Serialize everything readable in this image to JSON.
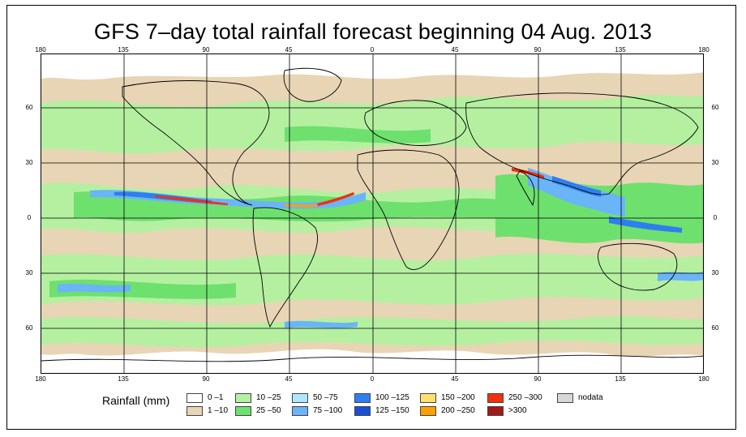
{
  "title": "GFS 7–day total rainfall forecast beginning 04 Aug. 2013",
  "lon_labels": [
    "180",
    "135",
    "90",
    "45",
    "0",
    "45",
    "90",
    "135",
    "180"
  ],
  "lat_labels": [
    "60",
    "30",
    "0",
    "30",
    "60"
  ],
  "legend": {
    "title": "Rainfall (mm)",
    "items": [
      {
        "label": "0 –1",
        "color": "#ffffff"
      },
      {
        "label": "1 –10",
        "color": "#e8d5b5"
      },
      {
        "label": "10 –25",
        "color": "#b4f0a0"
      },
      {
        "label": "25 –50",
        "color": "#6ee06e"
      },
      {
        "label": "50 –75",
        "color": "#aee8ff"
      },
      {
        "label": "75 –100",
        "color": "#6ab4f8"
      },
      {
        "label": "100 –125",
        "color": "#2f7ef0"
      },
      {
        "label": "125 –150",
        "color": "#1a4fd8"
      },
      {
        "label": "150 –200",
        "color": "#ffe070"
      },
      {
        "label": "200 –250",
        "color": "#ffa000"
      },
      {
        "label": "250 –300",
        "color": "#f03010"
      },
      {
        "label": ">300",
        "color": "#a01818"
      },
      {
        "label": "nodata",
        "color": "#d8d8d8"
      }
    ]
  }
}
